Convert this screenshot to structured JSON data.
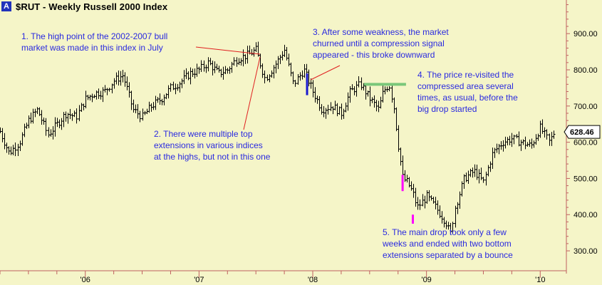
{
  "header": {
    "badge": "A",
    "title": "$RUT - Weekly  Russell 2000 Index"
  },
  "annotations": [
    {
      "id": "note-1",
      "text": "1. The high point of the 2002-2007 bull\nmarket was made in this index in July"
    },
    {
      "id": "note-2",
      "text": "2. There were multiple top\nextensions in various indices\nat the highs, but not in this one"
    },
    {
      "id": "note-3",
      "text": "3. After some weakness, the market\nchurned until a compression signal\nappeared - this broke downward"
    },
    {
      "id": "note-4",
      "text": "4. The price re-visited the\ncompressed area several\ntimes, as usual, before the\nbig drop started"
    },
    {
      "id": "note-5",
      "text": "5. The main drop took only a few\nweeks and ended with two bottom\nextensions separated by a bounce"
    }
  ],
  "colors": {
    "background": "#f5f5c8",
    "bars": "#000000",
    "annotation_text": "#2a2ae0",
    "arrows": "#e02020",
    "compression": "#1a1ad0",
    "extension": "#ff00ff",
    "compressed_zone": "#7ac77a",
    "last_price_box": "#ffffff"
  },
  "chart_data": {
    "type": "ohlc",
    "title": "$RUT - Weekly  Russell 2000 Index",
    "xlabel": "",
    "ylabel": "",
    "x_range": [
      2005.25,
      2010.23
    ],
    "ylim": [
      245,
      985
    ],
    "y_ticks": [
      300,
      400,
      500,
      600,
      700,
      800,
      900
    ],
    "y_tick_labels": [
      "300.00",
      "400.00",
      "500.00",
      "600.00",
      "700.00",
      "800.00",
      "900.00"
    ],
    "x_ticks": [
      2006,
      2007,
      2008,
      2009,
      2010
    ],
    "x_tick_labels": [
      "'06",
      "'07",
      "'08",
      "'09",
      "'10"
    ],
    "grid": false,
    "last_price": 628.46,
    "last_price_label": "628.46",
    "series": [
      {
        "x": [
          2005.25,
          2005.33,
          2005.42,
          2005.5,
          2005.58,
          2005.67,
          2005.75,
          2005.83,
          2005.92,
          2006.0,
          2006.08,
          2006.17,
          2006.25,
          2006.33,
          2006.42,
          2006.5,
          2006.58,
          2006.67,
          2006.75,
          2006.83,
          2006.92,
          2007.0,
          2007.08,
          2007.17,
          2007.25,
          2007.33,
          2007.42,
          2007.5,
          2007.58,
          2007.67,
          2007.75,
          2007.83,
          2007.92,
          2008.0,
          2008.08,
          2008.17,
          2008.25,
          2008.33,
          2008.42,
          2008.5,
          2008.58,
          2008.62,
          2008.67,
          2008.71,
          2008.75,
          2008.79,
          2008.83,
          2008.88,
          2008.92,
          2009.0,
          2009.08,
          2009.17,
          2009.21,
          2009.25,
          2009.33,
          2009.42,
          2009.5,
          2009.58,
          2009.67,
          2009.75,
          2009.83,
          2009.92,
          2010.0,
          2010.08,
          2010.12
        ],
        "y": [
          630,
          570,
          600,
          660,
          690,
          620,
          650,
          680,
          670,
          720,
          735,
          740,
          770,
          785,
          690,
          670,
          700,
          720,
          750,
          765,
          790,
          800,
          820,
          790,
          800,
          830,
          840,
          855,
          775,
          815,
          855,
          760,
          800,
          740,
          690,
          700,
          680,
          740,
          760,
          720,
          690,
          740,
          760,
          700,
          590,
          500,
          490,
          460,
          420,
          450,
          420,
          380,
          345,
          420,
          500,
          520,
          490,
          570,
          600,
          610,
          600,
          590,
          640,
          600,
          628.46
        ]
      }
    ],
    "markers": [
      {
        "type": "compression_signal",
        "x": 2007.95,
        "range": [
          730,
          790
        ]
      },
      {
        "type": "compressed_zone",
        "x_range": [
          2008.45,
          2008.82
        ],
        "y": 760
      },
      {
        "type": "extension",
        "x": 2008.79,
        "range": [
          465,
          510
        ]
      },
      {
        "type": "extension",
        "x": 2008.88,
        "range": [
          375,
          400
        ]
      }
    ]
  }
}
